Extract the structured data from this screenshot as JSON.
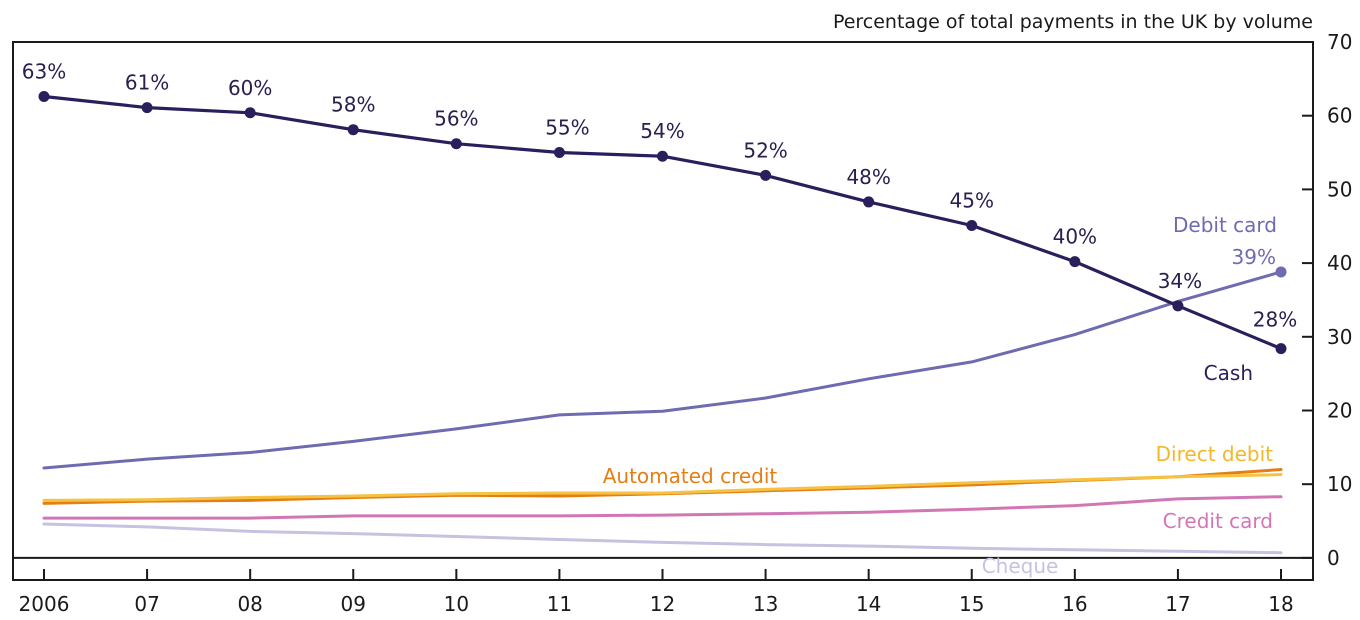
{
  "chart_data": {
    "type": "line",
    "unit_label": "Percentage of total payments in the UK by volume",
    "x_tick_labels": [
      "2006",
      "07",
      "08",
      "09",
      "10",
      "11",
      "12",
      "13",
      "14",
      "15",
      "16",
      "17",
      "18"
    ],
    "y_ticks": [
      0,
      10,
      20,
      30,
      40,
      50,
      60,
      70
    ],
    "ylim": [
      -3,
      70
    ],
    "grid": false,
    "series": [
      {
        "name": "Cash",
        "color": "#2a1f5c",
        "markers": true,
        "values": [
          62.6,
          61.1,
          60.4,
          58.1,
          56.2,
          55.0,
          54.5,
          51.9,
          48.3,
          45.1,
          40.2,
          34.2,
          28.4
        ],
        "data_labels": [
          "63%",
          "61%",
          "60%",
          "58%",
          "56%",
          "55%",
          "54%",
          "52%",
          "48%",
          "45%",
          "40%",
          "34%",
          "28%"
        ]
      },
      {
        "name": "Debit card",
        "color": "#6e6bb0",
        "end_label": "39%",
        "values": [
          12.2,
          13.4,
          14.3,
          15.8,
          17.5,
          19.4,
          19.9,
          21.7,
          24.3,
          26.6,
          30.3,
          34.8,
          38.8
        ]
      },
      {
        "name": "Direct debit",
        "color": "#f5c242",
        "values": [
          7.8,
          7.9,
          8.2,
          8.4,
          8.7,
          8.8,
          8.8,
          9.3,
          9.7,
          10.2,
          10.6,
          11.0,
          11.3
        ]
      },
      {
        "name": "Automated credit",
        "color": "#e57f14",
        "values": [
          7.4,
          7.7,
          7.8,
          8.2,
          8.5,
          8.4,
          8.7,
          9.1,
          9.5,
          9.9,
          10.5,
          11.0,
          12.0
        ]
      },
      {
        "name": "Credit card",
        "color": "#d277b5",
        "values": [
          5.4,
          5.4,
          5.4,
          5.7,
          5.7,
          5.7,
          5.8,
          6.0,
          6.2,
          6.6,
          7.1,
          8.0,
          8.3
        ]
      },
      {
        "name": "Cheque",
        "color": "#c5c3e0",
        "values": [
          4.6,
          4.2,
          3.6,
          3.3,
          2.9,
          2.5,
          2.1,
          1.8,
          1.6,
          1.3,
          1.1,
          0.9,
          0.7
        ]
      }
    ]
  }
}
